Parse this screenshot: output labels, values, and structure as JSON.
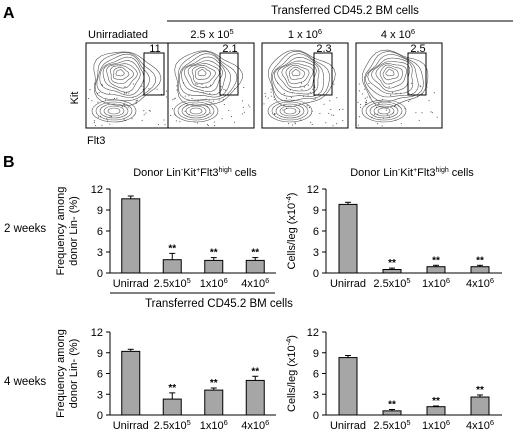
{
  "panels": {
    "a": {
      "label": "A"
    },
    "b": {
      "label": "B"
    }
  },
  "flow": {
    "group_title": "Transferred CD45.2 BM cells",
    "y_axis_label": "Kit",
    "x_axis_label": "Flt3",
    "plots": [
      {
        "title": "Unirradiated",
        "gate_percent": "11"
      },
      {
        "title": "2.5 x 10",
        "title_sup": "5",
        "gate_percent": "2.1"
      },
      {
        "title": "1 x 10",
        "title_sup": "6",
        "gate_percent": "2.3"
      },
      {
        "title": "4 x 10",
        "title_sup": "6",
        "gate_percent": "2.5"
      }
    ]
  },
  "rows": [
    {
      "label": "2 weeks"
    },
    {
      "label": "4 weeks"
    }
  ],
  "shared_xlabel": "Transferred CD45.2 BM cells",
  "chart_data": [
    {
      "type": "bar",
      "title": "Donor Lin-Kit+Flt3high cells",
      "title_parts": {
        "a": "Donor Lin",
        "b": "-",
        "c": "Kit",
        "d": "+",
        "e": "Flt3",
        "f": "high",
        "g": " cells"
      },
      "row": "2 weeks",
      "ylabel_line1": "Frequency among",
      "ylabel_line2": "donor Lin- (%)",
      "ylim": [
        0,
        12
      ],
      "yticks": [
        "0",
        "3",
        "6",
        "9",
        "12"
      ],
      "categories": [
        {
          "base": "Unirrad",
          "sup": ""
        },
        {
          "base": "2.5x10",
          "sup": "5"
        },
        {
          "base": "1x10",
          "sup": "6"
        },
        {
          "base": "4x10",
          "sup": "6"
        }
      ],
      "values": [
        10.6,
        1.9,
        1.8,
        1.8
      ],
      "errors": [
        0.4,
        0.9,
        0.4,
        0.4
      ],
      "significance": [
        "",
        "**",
        "**",
        "**"
      ]
    },
    {
      "type": "bar",
      "title": "Donor Lin-Kit+Flt3high cells",
      "title_parts": {
        "a": "Donor Lin",
        "b": "-",
        "c": "Kit",
        "d": "+",
        "e": "Flt3",
        "f": "high",
        "g": " cells"
      },
      "row": "2 weeks",
      "ylabel_line1": "Cells/leg (x10",
      "ylabel_sup": "-4",
      "ylabel_line1_end": ")",
      "ylim": [
        0,
        12
      ],
      "yticks": [
        "0",
        "3",
        "6",
        "9",
        "12"
      ],
      "categories": [
        {
          "base": "Unirrad",
          "sup": ""
        },
        {
          "base": "2.5x10",
          "sup": "5"
        },
        {
          "base": "1x10",
          "sup": "6"
        },
        {
          "base": "4x10",
          "sup": "6"
        }
      ],
      "values": [
        9.8,
        0.5,
        0.9,
        0.9
      ],
      "errors": [
        0.3,
        0.2,
        0.2,
        0.2
      ],
      "significance": [
        "",
        "**",
        "**",
        "**"
      ]
    },
    {
      "type": "bar",
      "title": "",
      "row": "4 weeks",
      "ylabel_line1": "Frequency among",
      "ylabel_line2": "donor Lin- (%)",
      "ylim": [
        0,
        12
      ],
      "yticks": [
        "0",
        "3",
        "6",
        "9",
        "12"
      ],
      "categories": [
        {
          "base": "Unirrad",
          "sup": ""
        },
        {
          "base": "2.5x10",
          "sup": "5"
        },
        {
          "base": "1x10",
          "sup": "6"
        },
        {
          "base": "4x10",
          "sup": "6"
        }
      ],
      "values": [
        9.2,
        2.3,
        3.6,
        5.0
      ],
      "errors": [
        0.3,
        0.9,
        0.3,
        0.6
      ],
      "significance": [
        "",
        "**",
        "**",
        "**"
      ]
    },
    {
      "type": "bar",
      "title": "",
      "row": "4 weeks",
      "ylabel_line1": "Cells/leg (x10",
      "ylabel_sup": "-4",
      "ylabel_line1_end": ")",
      "ylim": [
        0,
        12
      ],
      "yticks": [
        "0",
        "3",
        "6",
        "9",
        "12"
      ],
      "categories": [
        {
          "base": "Unirrad",
          "sup": ""
        },
        {
          "base": "2.5x10",
          "sup": "5"
        },
        {
          "base": "1x10",
          "sup": "6"
        },
        {
          "base": "4x10",
          "sup": "6"
        }
      ],
      "values": [
        8.3,
        0.6,
        1.2,
        2.6
      ],
      "errors": [
        0.3,
        0.2,
        0.1,
        0.3
      ],
      "significance": [
        "",
        "**",
        "**",
        "**"
      ]
    }
  ]
}
